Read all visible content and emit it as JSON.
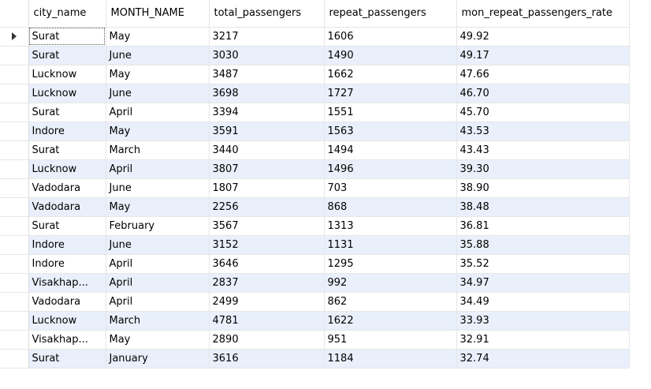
{
  "table": {
    "columns": [
      "city_name",
      "MONTH_NAME",
      "total_passengers",
      "repeat_passengers",
      "mon_repeat_passengers_rate"
    ],
    "current_row_indicator": "current-row-arrow-icon",
    "rows": [
      [
        "Surat",
        "May",
        "3217",
        "1606",
        "49.92"
      ],
      [
        "Surat",
        "June",
        "3030",
        "1490",
        "49.17"
      ],
      [
        "Lucknow",
        "May",
        "3487",
        "1662",
        "47.66"
      ],
      [
        "Lucknow",
        "June",
        "3698",
        "1727",
        "46.70"
      ],
      [
        "Surat",
        "April",
        "3394",
        "1551",
        "45.70"
      ],
      [
        "Indore",
        "May",
        "3591",
        "1563",
        "43.53"
      ],
      [
        "Surat",
        "March",
        "3440",
        "1494",
        "43.43"
      ],
      [
        "Lucknow",
        "April",
        "3807",
        "1496",
        "39.30"
      ],
      [
        "Vadodara",
        "June",
        "1807",
        "703",
        "38.90"
      ],
      [
        "Vadodara",
        "May",
        "2256",
        "868",
        "38.48"
      ],
      [
        "Surat",
        "February",
        "3567",
        "1313",
        "36.81"
      ],
      [
        "Indore",
        "June",
        "3152",
        "1131",
        "35.88"
      ],
      [
        "Indore",
        "April",
        "3646",
        "1295",
        "35.52"
      ],
      [
        "Visakhap...",
        "April",
        "2837",
        "992",
        "34.97"
      ],
      [
        "Vadodara",
        "April",
        "2499",
        "862",
        "34.49"
      ],
      [
        "Lucknow",
        "March",
        "4781",
        "1622",
        "33.93"
      ],
      [
        "Visakhap...",
        "May",
        "2890",
        "951",
        "32.91"
      ],
      [
        "Surat",
        "January",
        "3616",
        "1184",
        "32.74"
      ]
    ]
  },
  "colors": {
    "alt_row": "#e9f0fb",
    "grid_line": "#e6e6e6"
  }
}
